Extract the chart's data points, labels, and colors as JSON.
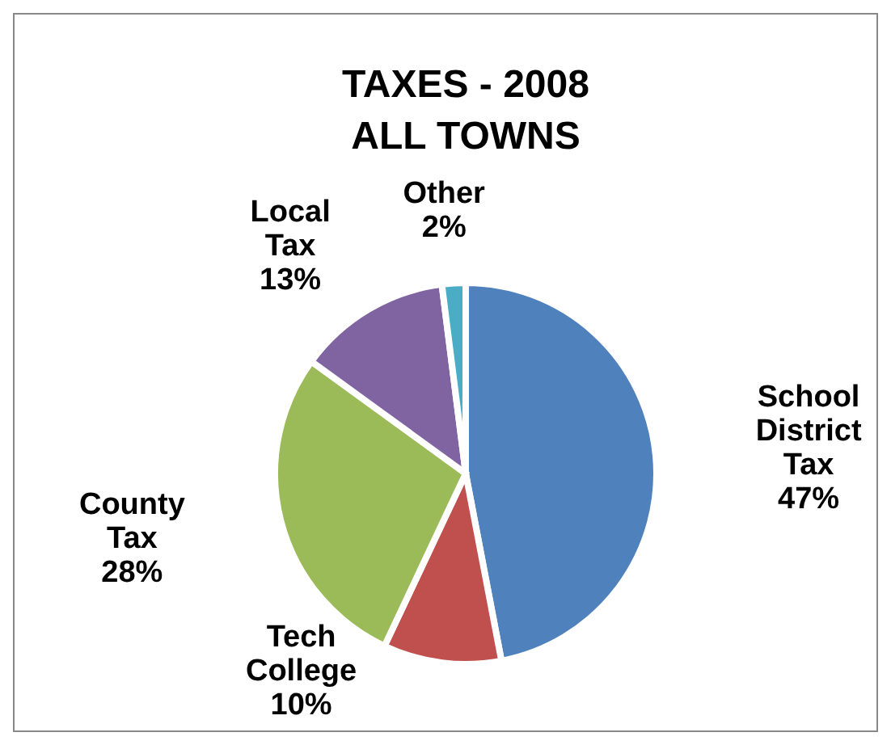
{
  "chart_data": {
    "type": "pie",
    "title": "TAXES - 2008",
    "subtitle": "ALL TOWNS",
    "categories": [
      "School District Tax",
      "Tech College",
      "County Tax",
      "Local Tax",
      "Other"
    ],
    "values": [
      47,
      10,
      28,
      13,
      2
    ],
    "value_labels": [
      "47%",
      "10%",
      "28%",
      "13%",
      "2%"
    ],
    "colors": [
      "#4f81bd",
      "#c0504d",
      "#9bbb59",
      "#8064a2",
      "#4bacc6"
    ]
  }
}
